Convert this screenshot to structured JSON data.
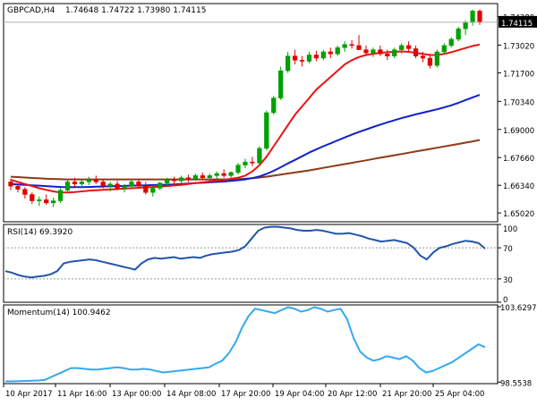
{
  "chart_data": [
    {
      "type": "candlestick",
      "title": "GBPCAD,H4",
      "ohlc_header": "1.74648 1.74722 1.73980 1.74115",
      "current_price_label": "1.74115",
      "y_ticks": [
        "1.65020",
        "1.66340",
        "1.67660",
        "1.69000",
        "1.70340",
        "1.71700",
        "1.73020",
        "1.74380"
      ],
      "ylim": [
        1.646,
        1.75
      ],
      "x_ticks": [
        "10 Apr 2017",
        "11 Apr 16:00",
        "13 Apr 00:00",
        "14 Apr 08:00",
        "17 Apr 20:00",
        "19 Apr 04:00",
        "20 Apr 12:00",
        "21 Apr 20:00",
        "25 Apr 04:00"
      ],
      "colors": {
        "up": "#00a000",
        "down": "#e00000",
        "ma_fast": "#ee1111",
        "ma_mid": "#1020cc",
        "ma_slow": "#8b3a1a"
      },
      "candles": [
        [
          1.665,
          1.6665,
          1.661,
          1.663
        ],
        [
          1.663,
          1.664,
          1.66,
          1.6615
        ],
        [
          1.6615,
          1.6625,
          1.657,
          1.659
        ],
        [
          1.659,
          1.66,
          1.6545,
          1.656
        ],
        [
          1.656,
          1.658,
          1.6535,
          1.6565
        ],
        [
          1.6565,
          1.659,
          1.654,
          1.655
        ],
        [
          1.655,
          1.6575,
          1.653,
          1.656
        ],
        [
          1.656,
          1.662,
          1.655,
          1.661
        ],
        [
          1.661,
          1.666,
          1.66,
          1.665
        ],
        [
          1.665,
          1.667,
          1.6625,
          1.664
        ],
        [
          1.664,
          1.666,
          1.662,
          1.665
        ],
        [
          1.665,
          1.6675,
          1.6635,
          1.666
        ],
        [
          1.666,
          1.668,
          1.664,
          1.665
        ],
        [
          1.665,
          1.6665,
          1.662,
          1.663
        ],
        [
          1.663,
          1.665,
          1.6605,
          1.664
        ],
        [
          1.664,
          1.6655,
          1.661,
          1.662
        ],
        [
          1.662,
          1.664,
          1.66,
          1.663
        ],
        [
          1.663,
          1.666,
          1.6615,
          1.665
        ],
        [
          1.665,
          1.666,
          1.662,
          1.663
        ],
        [
          1.663,
          1.665,
          1.659,
          1.66
        ],
        [
          1.66,
          1.663,
          1.658,
          1.662
        ],
        [
          1.662,
          1.665,
          1.661,
          1.6645
        ],
        [
          1.6645,
          1.667,
          1.663,
          1.666
        ],
        [
          1.666,
          1.6675,
          1.664,
          1.6655
        ],
        [
          1.6655,
          1.668,
          1.6645,
          1.667
        ],
        [
          1.667,
          1.6685,
          1.665,
          1.6665
        ],
        [
          1.6665,
          1.669,
          1.6655,
          1.668
        ],
        [
          1.668,
          1.6695,
          1.666,
          1.667
        ],
        [
          1.667,
          1.669,
          1.6655,
          1.668
        ],
        [
          1.668,
          1.67,
          1.6665,
          1.669
        ],
        [
          1.669,
          1.671,
          1.667,
          1.668
        ],
        [
          1.668,
          1.67,
          1.6665,
          1.6695
        ],
        [
          1.6695,
          1.674,
          1.6685,
          1.673
        ],
        [
          1.673,
          1.676,
          1.6715,
          1.6745
        ],
        [
          1.6745,
          1.677,
          1.6725,
          1.674
        ],
        [
          1.674,
          1.682,
          1.6735,
          1.681
        ],
        [
          1.681,
          1.699,
          1.68,
          1.698
        ],
        [
          1.698,
          1.706,
          1.697,
          1.705
        ],
        [
          1.705,
          1.72,
          1.704,
          1.718
        ],
        [
          1.718,
          1.727,
          1.717,
          1.725
        ],
        [
          1.725,
          1.728,
          1.721,
          1.723
        ],
        [
          1.723,
          1.725,
          1.72,
          1.7225
        ],
        [
          1.7225,
          1.727,
          1.7215,
          1.7255
        ],
        [
          1.7255,
          1.7275,
          1.7225,
          1.724
        ],
        [
          1.724,
          1.728,
          1.723,
          1.727
        ],
        [
          1.727,
          1.729,
          1.724,
          1.726
        ],
        [
          1.726,
          1.73,
          1.725,
          1.729
        ],
        [
          1.729,
          1.732,
          1.727,
          1.7305
        ],
        [
          1.7305,
          1.7325,
          1.7285,
          1.73
        ],
        [
          1.73,
          1.735,
          1.729,
          1.728
        ],
        [
          1.728,
          1.73,
          1.725,
          1.7265
        ],
        [
          1.7265,
          1.729,
          1.7245,
          1.728
        ],
        [
          1.728,
          1.73,
          1.725,
          1.726
        ],
        [
          1.726,
          1.728,
          1.723,
          1.725
        ],
        [
          1.725,
          1.729,
          1.724,
          1.728
        ],
        [
          1.728,
          1.731,
          1.726,
          1.73
        ],
        [
          1.73,
          1.732,
          1.727,
          1.7285
        ],
        [
          1.7285,
          1.73,
          1.724,
          1.725
        ],
        [
          1.725,
          1.727,
          1.722,
          1.724
        ],
        [
          1.724,
          1.726,
          1.719,
          1.7205
        ],
        [
          1.7205,
          1.728,
          1.7195,
          1.727
        ],
        [
          1.727,
          1.731,
          1.726,
          1.73
        ],
        [
          1.73,
          1.734,
          1.729,
          1.733
        ],
        [
          1.733,
          1.739,
          1.732,
          1.738
        ],
        [
          1.738,
          1.742,
          1.735,
          1.741
        ],
        [
          1.741,
          1.7472,
          1.7395,
          1.7465
        ],
        [
          1.7465,
          1.7472,
          1.7398,
          1.7411
        ]
      ],
      "ma_fast": [
        1.666,
        1.665,
        1.664,
        1.663,
        1.662,
        1.6612,
        1.6605,
        1.66,
        1.66,
        1.6602,
        1.6605,
        1.6608,
        1.661,
        1.6612,
        1.6614,
        1.6616,
        1.6618,
        1.662,
        1.6622,
        1.6624,
        1.6626,
        1.6628,
        1.663,
        1.6633,
        1.6636,
        1.664,
        1.6644,
        1.6648,
        1.6652,
        1.6656,
        1.666,
        1.6665,
        1.667,
        1.668,
        1.67,
        1.673,
        1.677,
        1.682,
        1.687,
        1.692,
        1.697,
        1.701,
        1.705,
        1.709,
        1.712,
        1.715,
        1.718,
        1.721,
        1.723,
        1.7245,
        1.7255,
        1.726,
        1.7265,
        1.7268,
        1.727,
        1.7272,
        1.727,
        1.7265,
        1.726,
        1.7255,
        1.7255,
        1.726,
        1.7268,
        1.7278,
        1.7288,
        1.7298,
        1.7305
      ],
      "ma_mid": [
        1.664,
        1.6638,
        1.6636,
        1.6634,
        1.6632,
        1.663,
        1.6628,
        1.6626,
        1.6625,
        1.6625,
        1.6625,
        1.6626,
        1.6627,
        1.6628,
        1.6629,
        1.663,
        1.6631,
        1.6632,
        1.6633,
        1.6634,
        1.6635,
        1.6636,
        1.6637,
        1.6638,
        1.664,
        1.6642,
        1.6644,
        1.6646,
        1.6648,
        1.665,
        1.6652,
        1.6655,
        1.6658,
        1.6662,
        1.6668,
        1.6676,
        1.6688,
        1.6703,
        1.672,
        1.6738,
        1.6755,
        1.6772,
        1.679,
        1.6805,
        1.682,
        1.6834,
        1.6848,
        1.6862,
        1.6875,
        1.6888,
        1.69,
        1.6912,
        1.6923,
        1.6934,
        1.6944,
        1.6954,
        1.6963,
        1.6972,
        1.698,
        1.6988,
        1.6996,
        1.7005,
        1.7015,
        1.7027,
        1.704,
        1.7053,
        1.7065
      ],
      "ma_slow": [
        1.6675,
        1.6673,
        1.6671,
        1.6669,
        1.6667,
        1.6665,
        1.6664,
        1.6663,
        1.6662,
        1.6662,
        1.6662,
        1.6662,
        1.6662,
        1.6662,
        1.6662,
        1.6662,
        1.6662,
        1.6662,
        1.6662,
        1.6662,
        1.6662,
        1.6662,
        1.6662,
        1.6662,
        1.6662,
        1.6662,
        1.6662,
        1.6662,
        1.6662,
        1.6662,
        1.6662,
        1.6662,
        1.6663,
        1.6665,
        1.6668,
        1.6671,
        1.6675,
        1.668,
        1.6685,
        1.669,
        1.6695,
        1.67,
        1.6705,
        1.6711,
        1.6717,
        1.6723,
        1.6729,
        1.6735,
        1.6741,
        1.6747,
        1.6753,
        1.6759,
        1.6765,
        1.6771,
        1.6777,
        1.6783,
        1.6789,
        1.6795,
        1.6801,
        1.6807,
        1.6813,
        1.6819,
        1.6825,
        1.6831,
        1.6837,
        1.6843,
        1.685
      ]
    },
    {
      "type": "line",
      "title": "RSI(14) 69.3920",
      "y_ticks": [
        "100",
        "70",
        "30",
        "0"
      ],
      "levels": [
        70,
        30
      ],
      "ylim": [
        0,
        100
      ],
      "color": "#2255aa",
      "values": [
        40,
        38,
        35,
        33,
        32,
        33,
        34,
        36,
        40,
        50,
        52,
        53,
        54,
        55,
        54,
        52,
        50,
        48,
        46,
        44,
        42,
        50,
        55,
        57,
        56,
        57,
        58,
        56,
        57,
        58,
        57,
        60,
        62,
        63,
        64,
        65,
        67,
        72,
        82,
        92,
        96,
        97,
        97,
        96,
        95,
        93,
        92,
        92,
        93,
        92,
        90,
        88,
        88,
        89,
        87,
        85,
        82,
        80,
        78,
        79,
        80,
        78,
        76,
        70,
        60,
        55,
        64,
        70,
        72,
        75,
        77,
        79,
        78,
        76,
        69
      ]
    },
    {
      "type": "line",
      "title": "Momentum(14) 100.9462",
      "y_ticks": [
        "103.6297",
        "98.5538"
      ],
      "ylim": [
        98.45,
        103.75
      ],
      "color": "#33aaee",
      "values": [
        98.6,
        98.6,
        98.62,
        98.63,
        98.65,
        98.66,
        98.7,
        98.9,
        99.1,
        99.3,
        99.5,
        99.5,
        99.45,
        99.4,
        99.4,
        99.45,
        99.5,
        99.55,
        99.5,
        99.4,
        99.4,
        99.45,
        99.4,
        99.3,
        99.2,
        99.25,
        99.3,
        99.35,
        99.4,
        99.45,
        99.5,
        99.55,
        99.8,
        100.0,
        100.5,
        101.2,
        102.2,
        103.0,
        103.5,
        103.4,
        103.3,
        103.2,
        103.4,
        103.6,
        103.5,
        103.3,
        103.4,
        103.6,
        103.5,
        103.3,
        103.4,
        103.5,
        102.8,
        101.5,
        100.6,
        100.2,
        100.0,
        100.1,
        100.3,
        100.2,
        100.1,
        100.3,
        100.0,
        99.5,
        99.2,
        99.3,
        99.5,
        99.7,
        99.9,
        100.2,
        100.5,
        100.8,
        101.1,
        100.9
      ]
    }
  ]
}
